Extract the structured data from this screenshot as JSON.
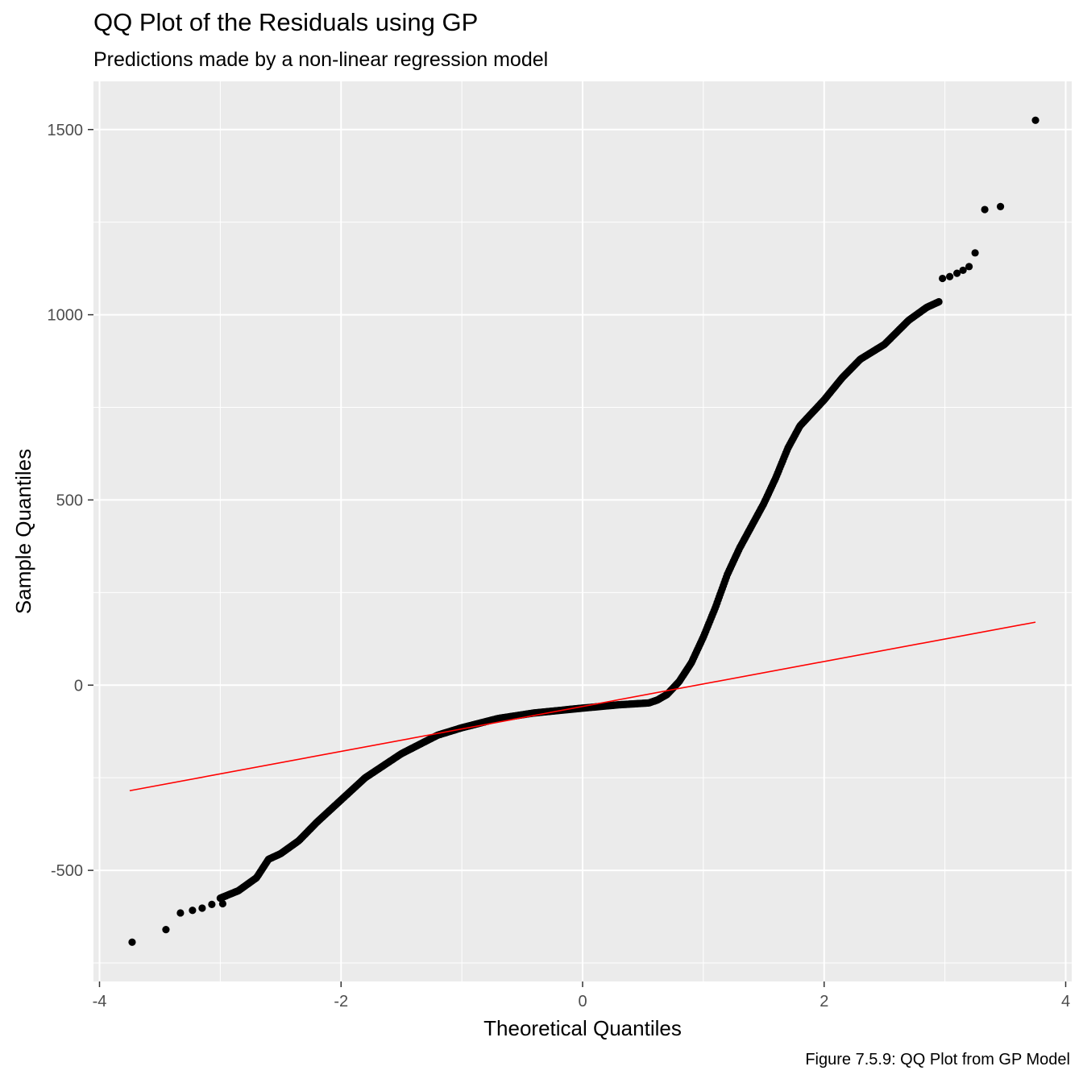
{
  "chart_data": {
    "type": "scatter",
    "title": "QQ Plot of the Residuals using GP",
    "subtitle": "Predictions made by a non-linear regression model",
    "caption": "Figure 7.5.9: QQ Plot from GP Model",
    "xlabel": "Theoretical Quantiles",
    "ylabel": "Sample Quantiles",
    "xlim": [
      -4.05,
      4.05
    ],
    "ylim": [
      -800,
      1630
    ],
    "x_ticks": [
      -4,
      -2,
      0,
      2,
      4
    ],
    "x_tick_labels": [
      "-4",
      "-2",
      "0",
      "2",
      "4"
    ],
    "y_ticks": [
      -500,
      0,
      500,
      1000,
      1500
    ],
    "y_tick_labels": [
      "-500",
      "0",
      "500",
      "1000",
      "1500"
    ],
    "grid": true,
    "colors": {
      "panel": "#ebebeb",
      "grid": "#ffffff",
      "points": "#000000",
      "reference_line": "#ff0000"
    },
    "qq_curve": [
      [
        -3.0,
        -575
      ],
      [
        -2.85,
        -555
      ],
      [
        -2.7,
        -520
      ],
      [
        -2.6,
        -470
      ],
      [
        -2.5,
        -455
      ],
      [
        -2.35,
        -420
      ],
      [
        -2.2,
        -370
      ],
      [
        -2.0,
        -310
      ],
      [
        -1.8,
        -250
      ],
      [
        -1.5,
        -185
      ],
      [
        -1.2,
        -135
      ],
      [
        -1.0,
        -115
      ],
      [
        -0.7,
        -90
      ],
      [
        -0.4,
        -75
      ],
      [
        0.0,
        -62
      ],
      [
        0.3,
        -53
      ],
      [
        0.55,
        -48
      ],
      [
        0.62,
        -40
      ],
      [
        0.7,
        -25
      ],
      [
        0.8,
        10
      ],
      [
        0.9,
        60
      ],
      [
        1.0,
        130
      ],
      [
        1.1,
        210
      ],
      [
        1.2,
        300
      ],
      [
        1.3,
        370
      ],
      [
        1.4,
        430
      ],
      [
        1.5,
        490
      ],
      [
        1.6,
        560
      ],
      [
        1.7,
        640
      ],
      [
        1.8,
        700
      ],
      [
        2.0,
        770
      ],
      [
        2.15,
        830
      ],
      [
        2.3,
        880
      ],
      [
        2.5,
        920
      ],
      [
        2.7,
        985
      ],
      [
        2.85,
        1020
      ],
      [
        2.95,
        1035
      ]
    ],
    "tail_points": [
      [
        -3.73,
        -694
      ],
      [
        -3.45,
        -660
      ],
      [
        -3.33,
        -615
      ],
      [
        -3.23,
        -608
      ],
      [
        -3.15,
        -602
      ],
      [
        -3.07,
        -592
      ],
      [
        -2.98,
        -590
      ],
      [
        2.98,
        1098
      ],
      [
        3.04,
        1103
      ],
      [
        3.1,
        1112
      ],
      [
        3.15,
        1120
      ],
      [
        3.2,
        1130
      ],
      [
        3.25,
        1167
      ],
      [
        3.33,
        1284
      ],
      [
        3.46,
        1292
      ],
      [
        3.75,
        1525
      ]
    ],
    "reference_line": {
      "x": [
        -3.75,
        3.75
      ],
      "y": [
        -285,
        170
      ]
    }
  }
}
